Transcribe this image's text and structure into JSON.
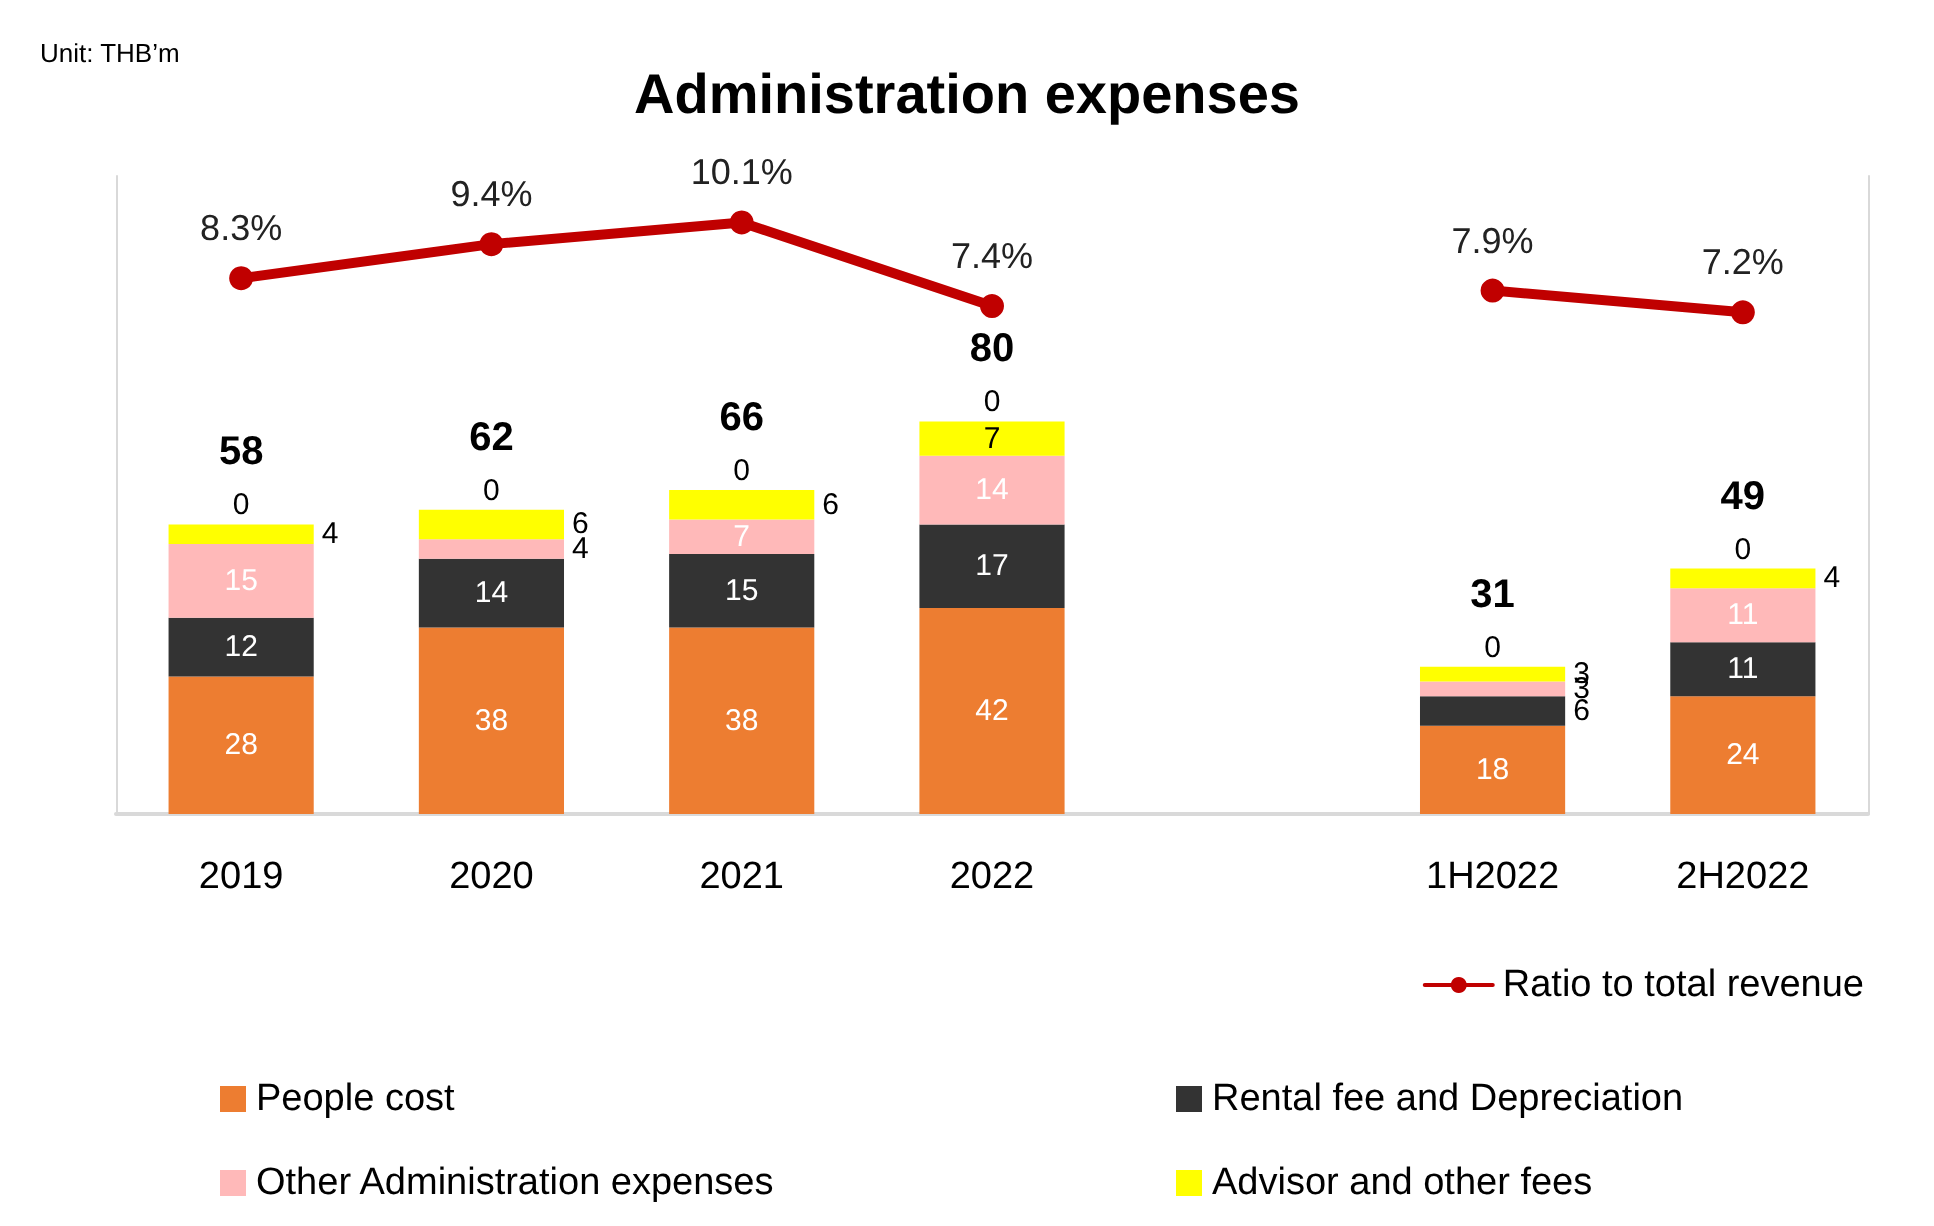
{
  "chart_data": {
    "type": "bar",
    "title": "Administration expenses",
    "annotations": [
      "Unit: THB’m"
    ],
    "categories": [
      "2019",
      "2020",
      "2021",
      "2022",
      null,
      "1H2022",
      "2H2022"
    ],
    "ylim": [
      0,
      130
    ],
    "y2lim": [
      -9,
      11.6
    ],
    "stacked": true,
    "data_labels": true,
    "legend": "bottom",
    "tick_labels": "x",
    "grid": false,
    "totals": [
      "58",
      "62",
      "66",
      "80",
      null,
      "31",
      "49"
    ],
    "series": [
      {
        "name": "People cost",
        "color": "#ed7d31",
        "values": [
          28,
          38,
          38,
          42,
          null,
          18,
          24
        ]
      },
      {
        "name": "Rental fee and Depreciation",
        "color": "#333333",
        "values": [
          12,
          14,
          15,
          17,
          null,
          6,
          11
        ]
      },
      {
        "name": "Other Administration expenses",
        "color": "#ffb9b9",
        "values": [
          15,
          4,
          7,
          14,
          null,
          3,
          11
        ]
      },
      {
        "name": "Advisor and other fees",
        "color": "#ffff00",
        "values": [
          4,
          6,
          6,
          7,
          null,
          3,
          4
        ]
      },
      {
        "values": [
          0,
          0,
          0,
          0,
          null,
          0,
          0
        ]
      },
      {
        "name": "Ratio to total revenue",
        "type": "line",
        "axis": "y2",
        "color": "#c00000",
        "marker": "circle",
        "line_style": "solid",
        "values": [
          8.3,
          9.4,
          10.1,
          7.4,
          null,
          7.9,
          7.2
        ],
        "value_labels": [
          "8.3%",
          "9.4%",
          "10.1%",
          "7.4%",
          null,
          "7.9%",
          "7.2%"
        ]
      }
    ]
  }
}
